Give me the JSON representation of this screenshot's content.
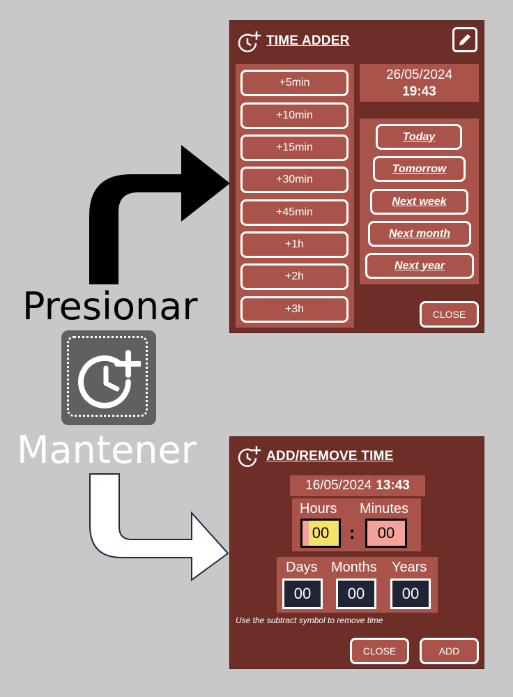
{
  "labels": {
    "press": "Presionar",
    "hold": "Mantener"
  },
  "time_adder": {
    "title": "TIME ADDER",
    "date": "26/05/2024",
    "time": "19:43",
    "increments": [
      "+5min",
      "+10min",
      "+15min",
      "+30min",
      "+45min",
      "+1h",
      "+2h",
      "+3h"
    ],
    "quick_dates": [
      "Today",
      "Tomorrow",
      "Next week",
      "Next month",
      "Next year"
    ],
    "close_label": "CLOSE"
  },
  "add_remove": {
    "title": "ADD/REMOVE TIME",
    "date": "16/05/2024",
    "time": "13:43",
    "hours_label": "Hours",
    "minutes_label": "Minutes",
    "hours_value": "00",
    "minutes_value": "00",
    "separator": ":",
    "days_label": "Days",
    "months_label": "Months",
    "years_label": "Years",
    "days_value": "00",
    "months_value": "00",
    "years_value": "00",
    "hint": "Use the subtract symbol to remove time",
    "close_label": "CLOSE",
    "add_label": "ADD"
  },
  "colors": {
    "panel_bg": "#6e2e28",
    "box_bg": "#a9534b",
    "hours_field": "#f5e26a",
    "minutes_field": "#f2a39b",
    "dmy_field": "#1f2535"
  },
  "icons": [
    "clock-plus-icon",
    "edit-pencil-icon",
    "arrow-right-icon"
  ]
}
